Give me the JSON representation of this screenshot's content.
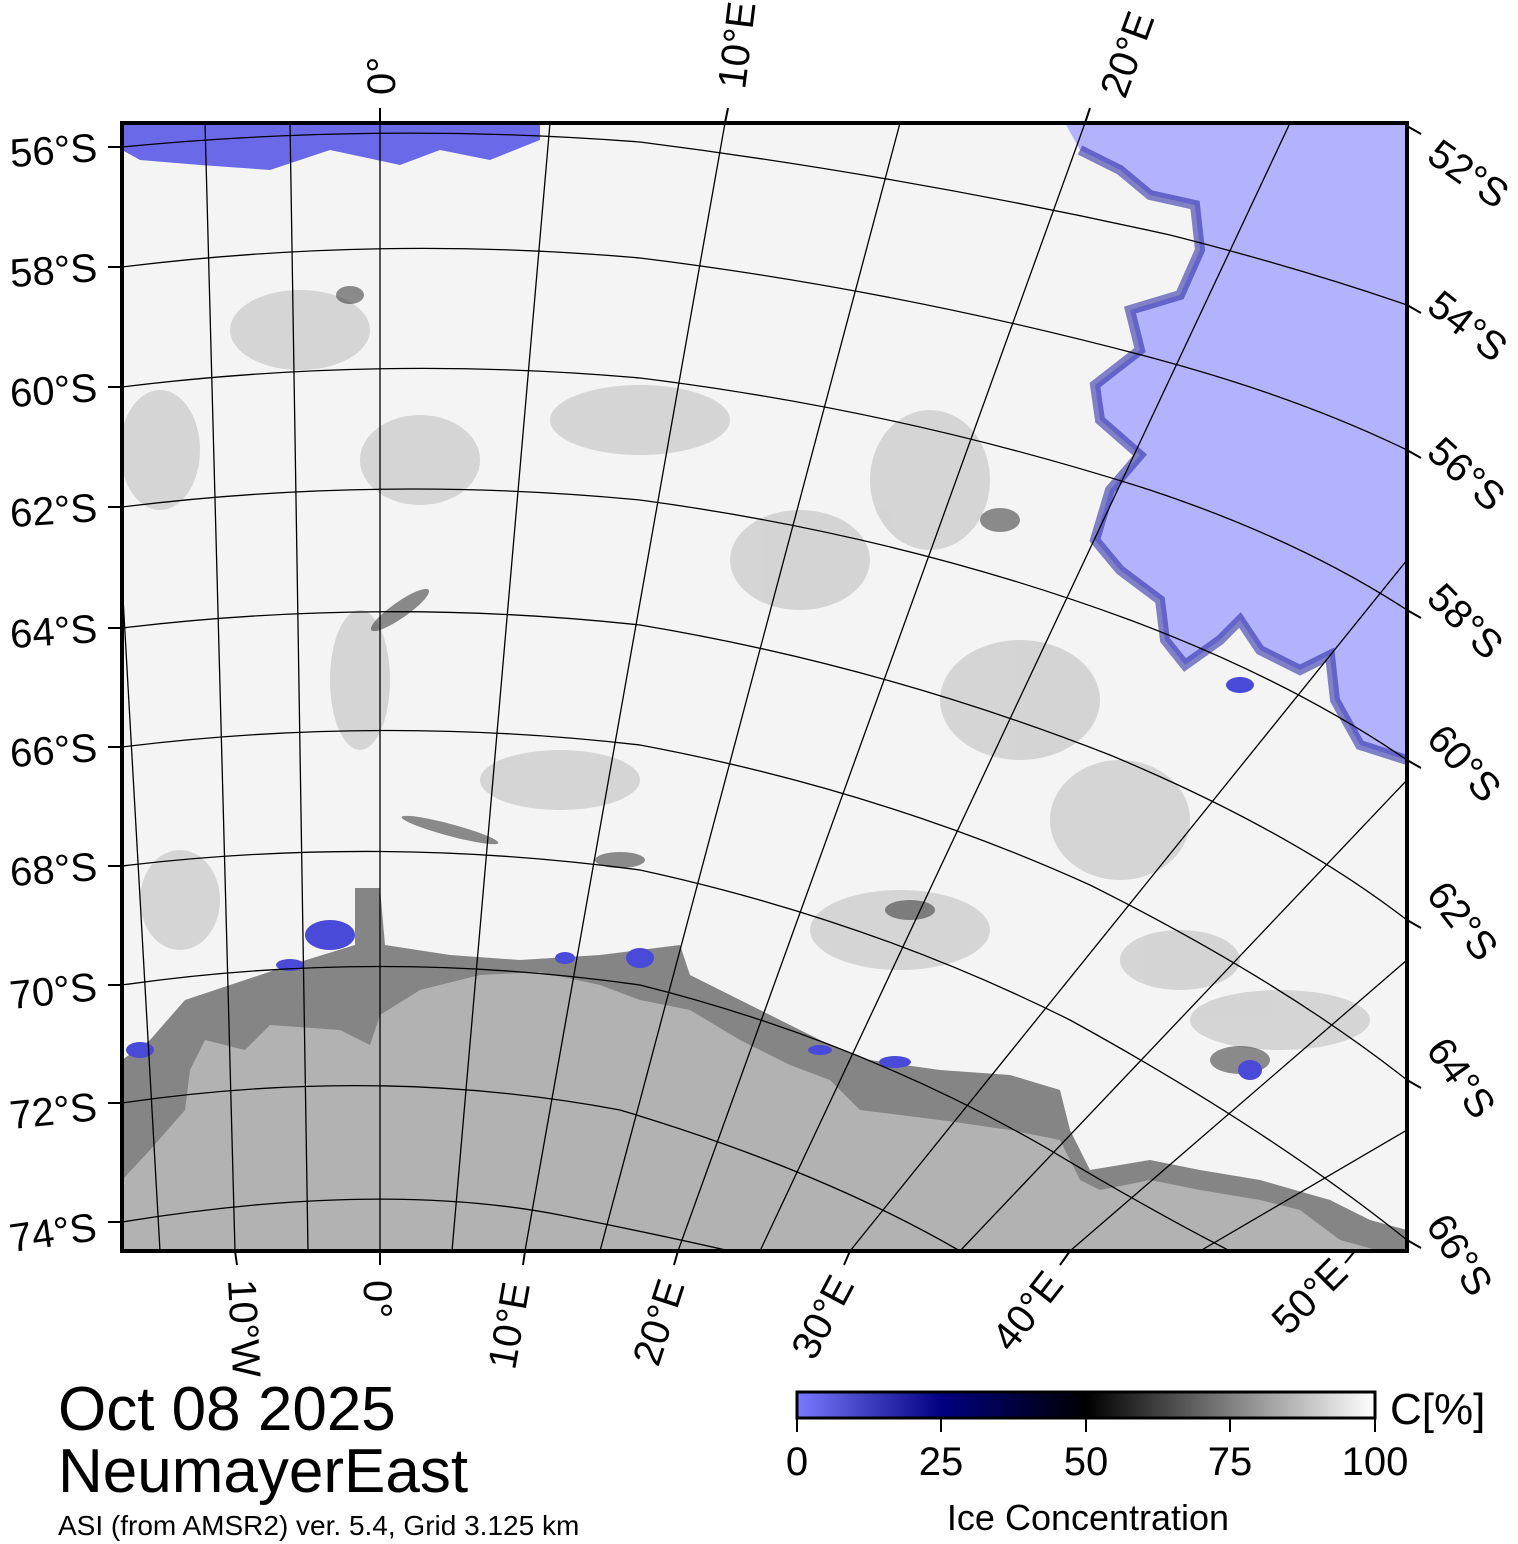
{
  "map": {
    "colors": {
      "open_water": "#b3b3fd",
      "ice_shelf": "#858585",
      "land": "#b2b2b2",
      "ice_high": "#f4f4f4",
      "low_ice": "#4a4ad8",
      "frame": "#000000"
    },
    "left_lat_labels": [
      "56°S",
      "58°S",
      "60°S",
      "62°S",
      "64°S",
      "66°S",
      "68°S",
      "70°S",
      "72°S",
      "74°S"
    ],
    "right_lat_labels": [
      "52°S",
      "54°S",
      "56°S",
      "58°S",
      "60°S",
      "62°S",
      "64°S",
      "66°S"
    ],
    "top_lon_labels": [
      "0°",
      "10°E",
      "20°E"
    ],
    "bottom_lon_labels": [
      "10°W",
      "0°",
      "10°E",
      "20°E",
      "30°E",
      "40°E",
      "50°E"
    ]
  },
  "title": {
    "date": "Oct 08 2025",
    "region": "NeumayerEast",
    "source": "ASI (from AMSR2) ver. 5.4,  Grid 3.125 km"
  },
  "colorbar": {
    "unit": "C[%]",
    "label": "Ice Concentration",
    "ticks": [
      "0",
      "25",
      "50",
      "75",
      "100"
    ],
    "range": [
      0,
      100
    ],
    "stops": [
      "#7a7aff",
      "#000080",
      "#000000",
      "#ffffff"
    ]
  }
}
